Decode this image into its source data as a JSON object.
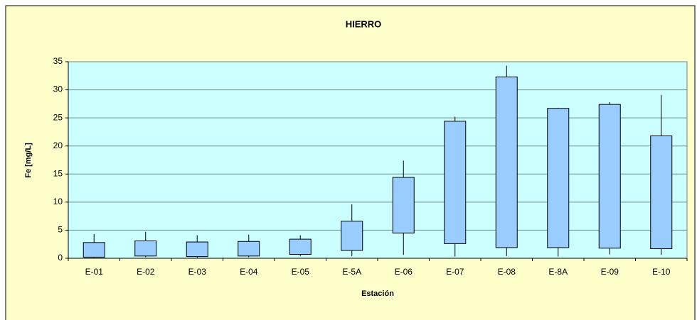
{
  "chart_data": {
    "type": "box",
    "title": "HIERRO",
    "xlabel": "Estación",
    "ylabel": "Fe [mg/L]",
    "categories": [
      "E-01",
      "E-02",
      "E-03",
      "E-04",
      "E-05",
      "E-5A",
      "E-06",
      "E-07",
      "E-08",
      "E-8A",
      "E-09",
      "E-10"
    ],
    "min": [
      0.1,
      0.2,
      0.1,
      0.2,
      0.4,
      0.4,
      0.6,
      0.3,
      0.4,
      0.3,
      0.7,
      0.6
    ],
    "q1": [
      0.2,
      0.4,
      0.3,
      0.4,
      0.7,
      1.4,
      4.5,
      2.6,
      1.9,
      1.9,
      1.8,
      1.7
    ],
    "q3": [
      2.8,
      3.1,
      2.9,
      3.0,
      3.4,
      6.6,
      14.4,
      24.4,
      32.3,
      26.7,
      27.4,
      21.8
    ],
    "max": [
      4.3,
      4.7,
      4.1,
      4.2,
      4.1,
      9.6,
      17.4,
      25.2,
      34.3,
      26.8,
      27.8,
      29.1
    ],
    "color": "#99ccff",
    "ylim": [
      0,
      35
    ],
    "yticks": [
      0,
      5,
      10,
      15,
      20,
      25,
      30,
      35
    ],
    "grid": true
  }
}
